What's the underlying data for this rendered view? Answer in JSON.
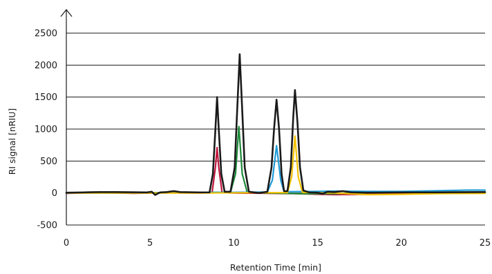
{
  "chart_data": {
    "type": "line",
    "xlabel": "Retention Time [min]",
    "ylabel": "RI signal [nRIU]",
    "xlim": [
      0,
      25
    ],
    "ylim": [
      -500,
      2500
    ],
    "xticks": [
      0,
      5,
      10,
      15,
      20,
      25
    ],
    "yticks": [
      -500,
      0,
      500,
      1000,
      1500,
      2000,
      2500
    ],
    "grid": "horizontal",
    "legend": "none",
    "series": [
      {
        "color": "#c0173f",
        "points": [
          [
            0,
            -5
          ],
          [
            2,
            5
          ],
          [
            4,
            -5
          ],
          [
            6,
            3
          ],
          [
            8,
            0
          ],
          [
            8.7,
            5
          ],
          [
            8.9,
            400
          ],
          [
            9.0,
            710
          ],
          [
            9.1,
            400
          ],
          [
            9.3,
            5
          ],
          [
            10,
            0
          ],
          [
            12,
            -5
          ],
          [
            14,
            -10
          ],
          [
            15,
            -20
          ],
          [
            16,
            -25
          ],
          [
            18,
            -20
          ],
          [
            20,
            -10
          ],
          [
            22,
            -5
          ],
          [
            25,
            0
          ]
        ]
      },
      {
        "color": "#1d8a3a",
        "points": [
          [
            0,
            5
          ],
          [
            5,
            5
          ],
          [
            8,
            10
          ],
          [
            9.8,
            10
          ],
          [
            10.1,
            300
          ],
          [
            10.3,
            1040
          ],
          [
            10.5,
            300
          ],
          [
            10.8,
            10
          ],
          [
            12,
            0
          ],
          [
            14,
            -10
          ],
          [
            16,
            -10
          ],
          [
            18,
            5
          ],
          [
            20,
            10
          ],
          [
            22,
            12
          ],
          [
            25,
            15
          ]
        ]
      },
      {
        "color": "#1e9bd7",
        "points": [
          [
            0,
            0
          ],
          [
            5,
            0
          ],
          [
            8,
            8
          ],
          [
            10,
            10
          ],
          [
            12,
            15
          ],
          [
            12.3,
            200
          ],
          [
            12.55,
            740
          ],
          [
            12.8,
            200
          ],
          [
            13.0,
            20
          ],
          [
            15,
            25
          ],
          [
            16,
            30
          ],
          [
            18,
            25
          ],
          [
            20,
            25
          ],
          [
            22,
            35
          ],
          [
            24,
            45
          ],
          [
            25,
            45
          ]
        ]
      },
      {
        "color": "#f2c200",
        "points": [
          [
            0,
            0
          ],
          [
            8,
            0
          ],
          [
            11,
            5
          ],
          [
            13.2,
            5
          ],
          [
            13.45,
            250
          ],
          [
            13.65,
            890
          ],
          [
            13.85,
            250
          ],
          [
            14.1,
            10
          ],
          [
            16,
            0
          ],
          [
            18,
            -25
          ],
          [
            20,
            -20
          ],
          [
            22,
            -10
          ],
          [
            25,
            -5
          ]
        ]
      },
      {
        "color": "#1a1a1a",
        "points": [
          [
            0,
            5
          ],
          [
            1,
            10
          ],
          [
            2,
            15
          ],
          [
            3,
            15
          ],
          [
            4,
            12
          ],
          [
            4.8,
            10
          ],
          [
            5.1,
            20
          ],
          [
            5.3,
            -30
          ],
          [
            5.6,
            10
          ],
          [
            6,
            15
          ],
          [
            6.4,
            30
          ],
          [
            6.8,
            15
          ],
          [
            8,
            10
          ],
          [
            8.55,
            10
          ],
          [
            8.75,
            300
          ],
          [
            8.9,
            1000
          ],
          [
            9.0,
            1500
          ],
          [
            9.1,
            1000
          ],
          [
            9.25,
            300
          ],
          [
            9.45,
            20
          ],
          [
            9.8,
            20
          ],
          [
            10.05,
            400
          ],
          [
            10.2,
            1300
          ],
          [
            10.35,
            2170
          ],
          [
            10.5,
            1300
          ],
          [
            10.65,
            400
          ],
          [
            10.9,
            20
          ],
          [
            11.5,
            0
          ],
          [
            12.0,
            20
          ],
          [
            12.25,
            400
          ],
          [
            12.4,
            1000
          ],
          [
            12.55,
            1460
          ],
          [
            12.7,
            1000
          ],
          [
            12.85,
            300
          ],
          [
            13.0,
            30
          ],
          [
            13.2,
            30
          ],
          [
            13.4,
            400
          ],
          [
            13.55,
            1200
          ],
          [
            13.65,
            1610
          ],
          [
            13.8,
            1100
          ],
          [
            13.95,
            400
          ],
          [
            14.15,
            40
          ],
          [
            14.5,
            10
          ],
          [
            15,
            5
          ],
          [
            15.3,
            -10
          ],
          [
            15.6,
            20
          ],
          [
            16,
            15
          ],
          [
            16.5,
            30
          ],
          [
            17,
            10
          ],
          [
            18,
            5
          ],
          [
            20,
            10
          ],
          [
            22,
            10
          ],
          [
            25,
            15
          ]
        ]
      }
    ]
  }
}
